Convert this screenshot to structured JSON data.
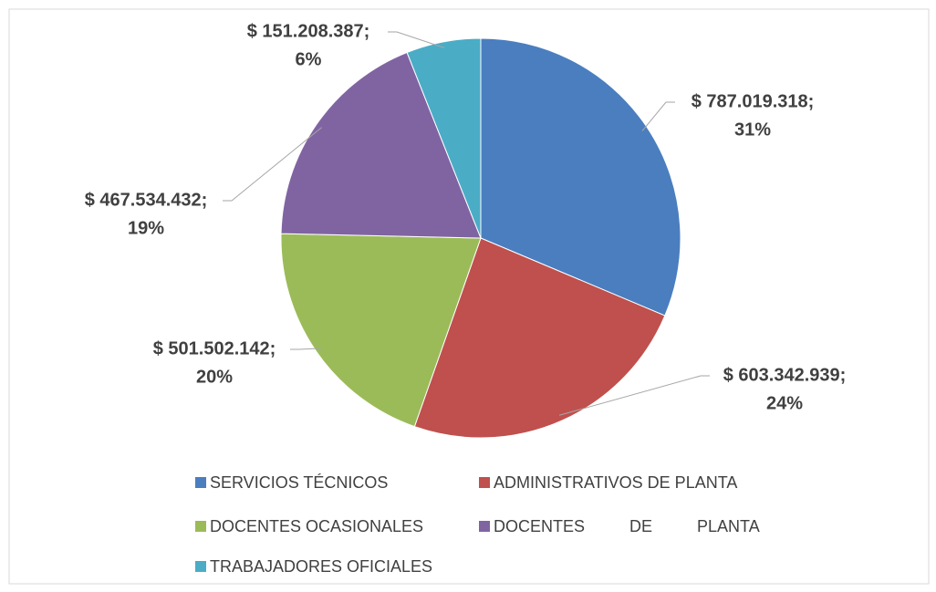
{
  "chart_data": {
    "type": "pie",
    "categories": [
      "SERVICIOS TÉCNICOS",
      "ADMINISTRATIVOS DE PLANTA",
      "DOCENTES OCASIONALES",
      "DOCENTES DE PLANTA",
      "TRABAJADORES OFICIALES"
    ],
    "values": [
      787019318,
      603342939,
      501502142,
      467534432,
      151208387
    ],
    "value_labels": [
      "$ 787.019.318;",
      "$ 603.342.939;",
      "$ 501.502.142;",
      "$ 467.534.432;",
      "$ 151.208.387;"
    ],
    "percent_labels": [
      "31%",
      "24%",
      "20%",
      "19%",
      "6%"
    ],
    "colors": [
      "#4a7ebf",
      "#c0504d",
      "#9bbb59",
      "#8064a2",
      "#4bacc6"
    ],
    "legend": "bottom"
  }
}
